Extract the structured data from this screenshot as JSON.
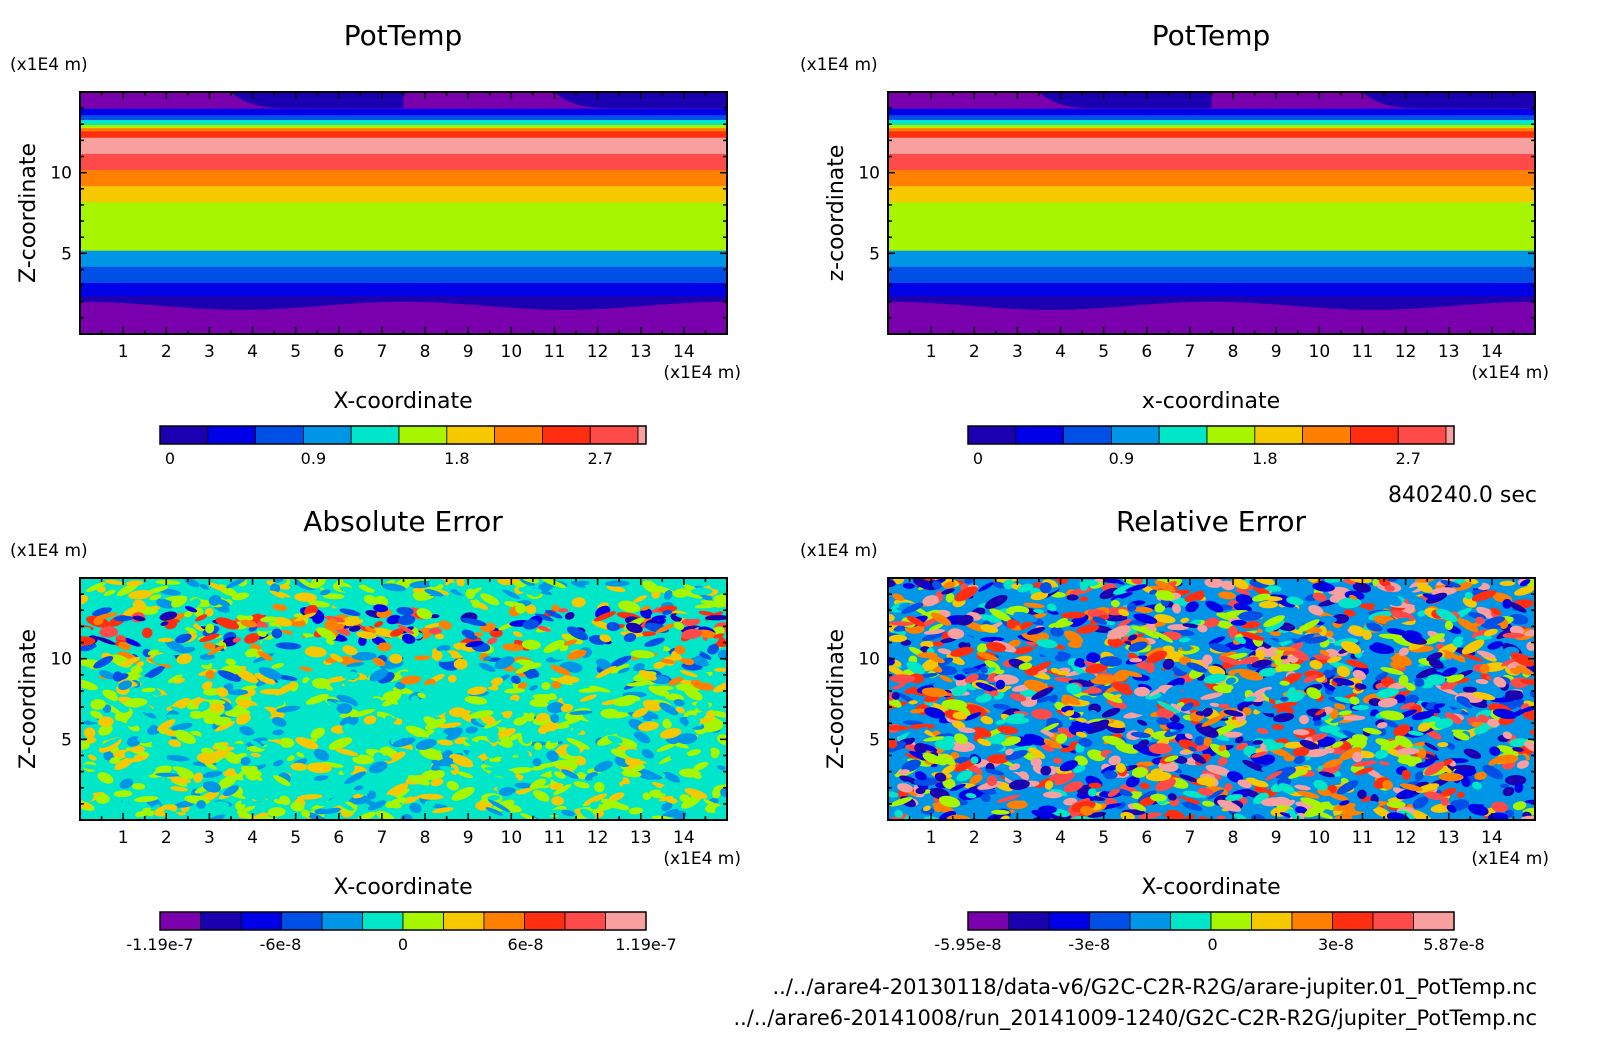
{
  "colors": {
    "band_palette": [
      "#7a00ad",
      "#1a00b0",
      "#0000e8",
      "#0050e8",
      "#0096e8",
      "#00e6c8",
      "#a8f500",
      "#f5c800",
      "#ff8000",
      "#ff2e10",
      "#ff4a4a",
      "#f8a0a0"
    ],
    "frame": "#000000"
  },
  "footer": {
    "time": "840240.0 sec",
    "file1": "../../arare4-20130118/data-v6/G2C-C2R-R2G/arare-jupiter.01_PotTemp.nc",
    "file2": "../../arare6-20141008/run_20141009-1240/G2C-C2R-R2G/jupiter_PotTemp.nc"
  },
  "chart_data": [
    {
      "type": "heatmap",
      "title": "PotTemp",
      "xlabel": "X-coordinate",
      "ylabel": "Z-coordinate",
      "x_unit": "(x1E4 m)",
      "y_unit": "(x1E4 m)",
      "xlim": [
        0,
        15
      ],
      "ylim": [
        0,
        15
      ],
      "x_ticks": [
        "1",
        "2",
        "3",
        "4",
        "5",
        "6",
        "7",
        "8",
        "9",
        "10",
        "11",
        "12",
        "13",
        "14"
      ],
      "y_ticks": [
        "5",
        "10"
      ],
      "colorbar_levels": [
        0,
        0.3,
        0.6,
        0.9,
        1.2,
        1.5,
        1.8,
        2.1,
        2.4,
        2.7,
        3.0
      ],
      "colorbar_labels": [
        "0",
        "0.9",
        "1.8",
        "2.7"
      ]
    },
    {
      "type": "heatmap",
      "title": "PotTemp",
      "xlabel": "x-coordinate",
      "ylabel": "z-coordinate",
      "x_unit": "(x1E4 m)",
      "y_unit": "(x1E4 m)",
      "xlim": [
        0,
        15
      ],
      "ylim": [
        0,
        15
      ],
      "x_ticks": [
        "1",
        "2",
        "3",
        "4",
        "5",
        "6",
        "7",
        "8",
        "9",
        "10",
        "11",
        "12",
        "13",
        "14"
      ],
      "y_ticks": [
        "5",
        "10"
      ],
      "colorbar_levels": [
        0,
        0.3,
        0.6,
        0.9,
        1.2,
        1.5,
        1.8,
        2.1,
        2.4,
        2.7,
        3.0
      ],
      "colorbar_labels": [
        "0",
        "0.9",
        "1.8",
        "2.7"
      ]
    },
    {
      "type": "heatmap",
      "title": "Absolute Error",
      "xlabel": "X-coordinate",
      "ylabel": "Z-coordinate",
      "x_unit": "(x1E4 m)",
      "y_unit": "(x1E4 m)",
      "xlim": [
        0,
        15
      ],
      "ylim": [
        0,
        15
      ],
      "x_ticks": [
        "1",
        "2",
        "3",
        "4",
        "5",
        "6",
        "7",
        "8",
        "9",
        "10",
        "11",
        "12",
        "13",
        "14"
      ],
      "y_ticks": [
        "5",
        "10"
      ],
      "colorbar_range": [
        -1.19e-07,
        1.19e-07
      ],
      "colorbar_labels": [
        "-1.19e-7",
        "-6e-8",
        "0",
        "6e-8",
        "1.19e-7"
      ]
    },
    {
      "type": "heatmap",
      "title": "Relative Error",
      "xlabel": "X-coordinate",
      "ylabel": "Z-coordinate",
      "x_unit": "(x1E4 m)",
      "y_unit": "(x1E4 m)",
      "xlim": [
        0,
        15
      ],
      "ylim": [
        0,
        15
      ],
      "x_ticks": [
        "1",
        "2",
        "3",
        "4",
        "5",
        "6",
        "7",
        "8",
        "9",
        "10",
        "11",
        "12",
        "13",
        "14"
      ],
      "y_ticks": [
        "5",
        "10"
      ],
      "colorbar_range": [
        -5.95e-08,
        5.87e-08
      ],
      "colorbar_labels": [
        "-5.95e-8",
        "-3e-8",
        "0",
        "3e-8",
        "5.87e-8"
      ]
    }
  ]
}
